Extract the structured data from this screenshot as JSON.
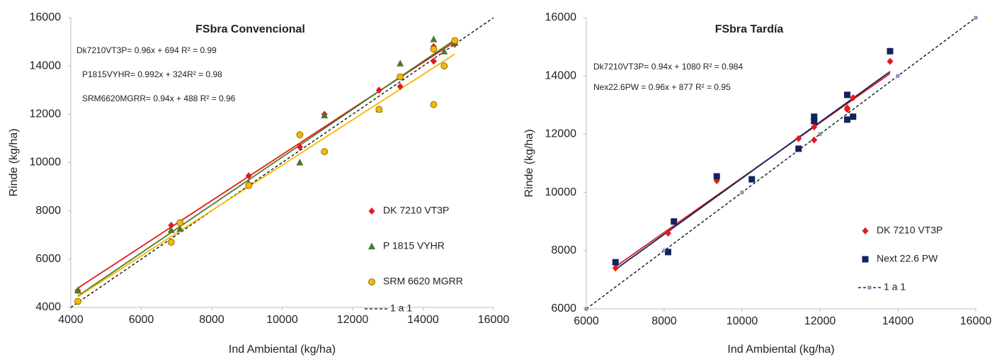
{
  "chart_data": [
    {
      "type": "scatter",
      "title": "FSbra Convencional",
      "x_label": "Ind Ambiental (kg/ha)",
      "y_label": "Rinde (kg/ha)",
      "xlim": [
        4000,
        16000
      ],
      "ylim": [
        4000,
        16000
      ],
      "xticks": [
        4000,
        6000,
        8000,
        10000,
        12000,
        14000,
        16000
      ],
      "yticks": [
        4000,
        6000,
        8000,
        10000,
        12000,
        14000,
        16000
      ],
      "legend": "lower right",
      "grid": false,
      "annotations": [
        {
          "text": "Dk7210VT3P= 0.96x + 694 R² = 0.99",
          "color": "#e31a1c"
        },
        {
          "text": "P1815VYHR= 0.992x + 324R² = 0.98",
          "color": "#3f5f1f"
        },
        {
          "text": "SRM6620MGRR= 0.94x + 488 R² = 0.96",
          "color": "#f2b800"
        }
      ],
      "series": [
        {
          "name": "DK 7210 VT3P",
          "color": "#e31a1c",
          "marker": "diamond",
          "trendline": true,
          "x": [
            4200,
            6850,
            7100,
            9050,
            10500,
            11200,
            12750,
            13350,
            14300,
            14300,
            14900
          ],
          "values": [
            4700,
            7400,
            7500,
            9450,
            10650,
            12000,
            13000,
            13150,
            14200,
            14800,
            14900
          ]
        },
        {
          "name": "P 1815 VYHR",
          "color": "#4a7a2a",
          "marker": "triangle",
          "trendline": true,
          "x": [
            4200,
            6850,
            7100,
            9050,
            10500,
            11200,
            12750,
            13350,
            14300,
            14600,
            14900
          ],
          "values": [
            4700,
            7200,
            7250,
            9150,
            10000,
            11950,
            12200,
            14100,
            15100,
            14600,
            14950
          ]
        },
        {
          "name": "SRM 6620 MGRR",
          "color": "#f5b800",
          "marker": "circle",
          "trendline": true,
          "x": [
            4200,
            6850,
            7100,
            9050,
            10500,
            11200,
            12750,
            13350,
            14300,
            14300,
            14600,
            14900
          ],
          "values": [
            4250,
            6700,
            7500,
            9050,
            11150,
            10450,
            12200,
            13550,
            12400,
            14700,
            14000,
            15050
          ]
        },
        {
          "name": "1 a 1",
          "color": "#000000",
          "marker": "none",
          "line": "dashed",
          "trendline": false,
          "x": [
            4000,
            16000
          ],
          "values": [
            4000,
            16000
          ]
        }
      ]
    },
    {
      "type": "scatter",
      "title": "FSbra Tardía",
      "x_label": "Ind Ambiental (kg/ha)",
      "y_label": "Rinde (kg/ha)",
      "xlim": [
        6000,
        16000
      ],
      "ylim": [
        6000,
        16000
      ],
      "xticks": [
        6000,
        8000,
        10000,
        12000,
        14000,
        16000
      ],
      "yticks": [
        6000,
        8000,
        10000,
        12000,
        14000,
        16000
      ],
      "legend": "lower right",
      "grid": false,
      "annotations": [
        {
          "text": "Dk7210VT3P= 0.94x + 1080 R² = 0.984",
          "color": "#e31a1c"
        },
        {
          "text": "Nex22.6PW = 0.96x + 877 R² = 0.95",
          "color": "#1f3a7a"
        }
      ],
      "series": [
        {
          "name": "DK 7210 VT3P",
          "color": "#e31a1c",
          "marker": "diamond",
          "trendline": true,
          "x": [
            6750,
            8100,
            9350,
            11450,
            11850,
            11850,
            12700,
            12700,
            12850,
            13800
          ],
          "values": [
            7400,
            8600,
            10400,
            11850,
            11800,
            12250,
            12900,
            12850,
            13250,
            14500
          ]
        },
        {
          "name": "Next 22.6 PW",
          "color": "#12245e",
          "marker": "square",
          "trendline": true,
          "x": [
            6750,
            8100,
            8250,
            9350,
            10250,
            11450,
            11850,
            11850,
            12700,
            12700,
            12850,
            13800
          ],
          "values": [
            7600,
            7950,
            9000,
            10550,
            10450,
            11500,
            12450,
            12600,
            13350,
            12500,
            12600,
            14850
          ]
        },
        {
          "name": "1 a 1",
          "color": "#1f3a7a",
          "marker": "smallsquare",
          "line": "dashed",
          "trendline": false,
          "x": [
            6000,
            8000,
            10000,
            12000,
            14000,
            16000
          ],
          "values": [
            6000,
            8000,
            10000,
            12000,
            14000,
            16000
          ]
        }
      ]
    }
  ]
}
